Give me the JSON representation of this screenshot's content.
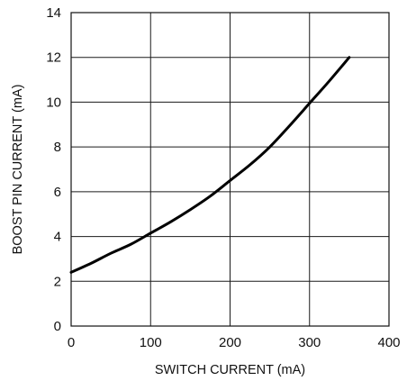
{
  "chart_data": {
    "type": "line",
    "title": "",
    "xlabel": "SWITCH CURRENT (mA)",
    "ylabel": "BOOST PIN CURRENT (mA)",
    "xlim": [
      0,
      400
    ],
    "ylim": [
      0,
      14
    ],
    "x_ticks": [
      0,
      100,
      200,
      300,
      400
    ],
    "y_ticks": [
      0,
      2,
      4,
      6,
      8,
      10,
      12,
      14
    ],
    "grid": true,
    "series": [
      {
        "x": [
          0,
          25,
          50,
          75,
          100,
          125,
          150,
          175,
          200,
          225,
          250,
          275,
          300,
          325,
          350
        ],
        "y": [
          2.4,
          2.8,
          3.25,
          3.65,
          4.15,
          4.65,
          5.2,
          5.8,
          6.5,
          7.2,
          8.0,
          8.95,
          9.95,
          10.95,
          12.0
        ]
      }
    ]
  }
}
